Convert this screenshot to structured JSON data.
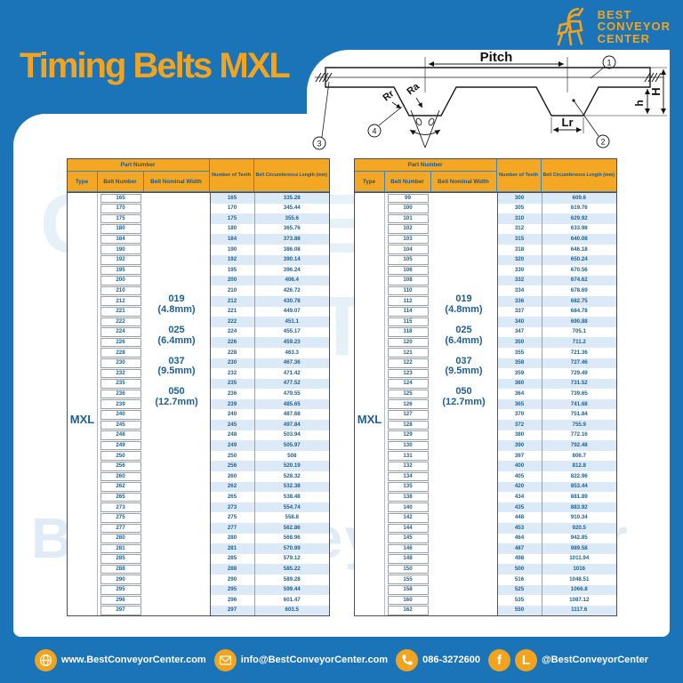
{
  "brand": {
    "line1": "BEST",
    "line2": "CONVEYOR",
    "line3": "CENTER"
  },
  "page_title": "Timing Belts MXL",
  "diagram": {
    "pitch": "Pitch",
    "rr": "Rr",
    "ra": "Ra",
    "lr": "Lr",
    "H": "H",
    "h": "h",
    "callout1": "1",
    "callout2": "2",
    "callout3": "3",
    "callout4": "4"
  },
  "watermark": {
    "line1": "CONVEYOR",
    "line2": "CENTER",
    "line3": "BestConveyorCenter"
  },
  "table_headers": {
    "part_number": "Part Number",
    "type": "Type",
    "belt_number": "Belt Number",
    "belt_nominal_width": "Belt Nominal Width",
    "number_of_teeth": "Number of Teeth",
    "belt_circumference": "Belt Circumference Length (mm)"
  },
  "tables": [
    {
      "type": "MXL",
      "widths": [
        {
          "code": "019",
          "mm": "(4.8mm)"
        },
        {
          "code": "025",
          "mm": "(6.4mm)"
        },
        {
          "code": "037",
          "mm": "(9.5mm)"
        },
        {
          "code": "050",
          "mm": "(12.7mm)"
        }
      ],
      "rows": [
        [
          "165",
          "165",
          "335.28"
        ],
        [
          "170",
          "170",
          "345.44"
        ],
        [
          "175",
          "175",
          "355.6"
        ],
        [
          "180",
          "180",
          "365.76"
        ],
        [
          "184",
          "184",
          "373.88"
        ],
        [
          "190",
          "190",
          "386.08"
        ],
        [
          "192",
          "192",
          "390.14"
        ],
        [
          "195",
          "195",
          "396.24"
        ],
        [
          "200",
          "200",
          "406.4"
        ],
        [
          "210",
          "210",
          "426.72"
        ],
        [
          "212",
          "212",
          "430.78"
        ],
        [
          "221",
          "221",
          "449.07"
        ],
        [
          "222",
          "222",
          "451.1"
        ],
        [
          "224",
          "224",
          "455.17"
        ],
        [
          "226",
          "226",
          "459.23"
        ],
        [
          "228",
          "228",
          "463.3"
        ],
        [
          "230",
          "230",
          "467.36"
        ],
        [
          "232",
          "232",
          "471.42"
        ],
        [
          "235",
          "235",
          "477.52"
        ],
        [
          "236",
          "236",
          "479.55"
        ],
        [
          "239",
          "239",
          "485.65"
        ],
        [
          "240",
          "240",
          "487.68"
        ],
        [
          "245",
          "245",
          "497.84"
        ],
        [
          "248",
          "248",
          "503.94"
        ],
        [
          "249",
          "249",
          "505.97"
        ],
        [
          "250",
          "250",
          "508"
        ],
        [
          "256",
          "256",
          "520.19"
        ],
        [
          "260",
          "260",
          "528.32"
        ],
        [
          "262",
          "262",
          "532.38"
        ],
        [
          "265",
          "265",
          "538.48"
        ],
        [
          "273",
          "273",
          "554.74"
        ],
        [
          "275",
          "275",
          "558.8"
        ],
        [
          "277",
          "277",
          "562.86"
        ],
        [
          "280",
          "280",
          "568.96"
        ],
        [
          "281",
          "281",
          "570.99"
        ],
        [
          "285",
          "285",
          "579.12"
        ],
        [
          "288",
          "288",
          "585.22"
        ],
        [
          "290",
          "290",
          "589.28"
        ],
        [
          "295",
          "295",
          "599.44"
        ],
        [
          "296",
          "296",
          "601.47"
        ],
        [
          "297",
          "297",
          "603.5"
        ]
      ]
    },
    {
      "type": "MXL",
      "widths": [
        {
          "code": "019",
          "mm": "(4.8mm)"
        },
        {
          "code": "025",
          "mm": "(6.4mm)"
        },
        {
          "code": "037",
          "mm": "(9.5mm)"
        },
        {
          "code": "050",
          "mm": "(12.7mm)"
        }
      ],
      "rows": [
        [
          "99",
          "300",
          "609.6"
        ],
        [
          "100",
          "305",
          "619.76"
        ],
        [
          "101",
          "310",
          "629.92"
        ],
        [
          "102",
          "312",
          "633.98"
        ],
        [
          "103",
          "315",
          "640.08"
        ],
        [
          "104",
          "318",
          "646.18"
        ],
        [
          "105",
          "320",
          "650.24"
        ],
        [
          "106",
          "330",
          "670.56"
        ],
        [
          "108",
          "332",
          "674.62"
        ],
        [
          "110",
          "334",
          "678.69"
        ],
        [
          "112",
          "336",
          "682.75"
        ],
        [
          "114",
          "337",
          "684.78"
        ],
        [
          "115",
          "340",
          "690.88"
        ],
        [
          "118",
          "347",
          "705.1"
        ],
        [
          "120",
          "350",
          "711.2"
        ],
        [
          "121",
          "355",
          "721.36"
        ],
        [
          "122",
          "358",
          "727.46"
        ],
        [
          "123",
          "359",
          "729.49"
        ],
        [
          "124",
          "360",
          "731.52"
        ],
        [
          "125",
          "364",
          "739.65"
        ],
        [
          "126",
          "365",
          "741.68"
        ],
        [
          "127",
          "370",
          "751.84"
        ],
        [
          "128",
          "372",
          "755.9"
        ],
        [
          "129",
          "380",
          "772.16"
        ],
        [
          "130",
          "390",
          "792.48"
        ],
        [
          "131",
          "397",
          "806.7"
        ],
        [
          "132",
          "400",
          "812.8"
        ],
        [
          "134",
          "405",
          "822.96"
        ],
        [
          "135",
          "420",
          "853.44"
        ],
        [
          "138",
          "434",
          "881.89"
        ],
        [
          "140",
          "435",
          "883.92"
        ],
        [
          "142",
          "448",
          "910.34"
        ],
        [
          "144",
          "453",
          "920.5"
        ],
        [
          "145",
          "464",
          "942.85"
        ],
        [
          "146",
          "487",
          "989.58"
        ],
        [
          "148",
          "498",
          "1011.94"
        ],
        [
          "150",
          "500",
          "1016"
        ],
        [
          "155",
          "516",
          "1048.51"
        ],
        [
          "158",
          "525",
          "1066.8"
        ],
        [
          "160",
          "535",
          "1087.12"
        ],
        [
          "162",
          "550",
          "1117.6"
        ]
      ]
    }
  ],
  "footer": {
    "website": "www.BestConveyorCenter.com",
    "email": "info@BestConveyorCenter.com",
    "phone": "086-3272600",
    "social": "@BestConveyorCenter"
  },
  "colors": {
    "blue": "#1b74b8",
    "yellow": "#f2a31f",
    "header_yellow": "#f4a722",
    "text_blue": "#1d6196",
    "stripe": "#dce9f6"
  }
}
